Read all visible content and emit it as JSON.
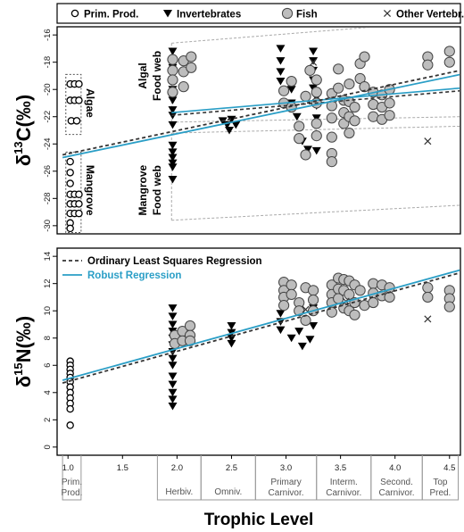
{
  "legend": [
    {
      "label": "Prim. Prod.",
      "marker": "circle-open"
    },
    {
      "label": "Invertebrates",
      "marker": "triangle-down"
    },
    {
      "label": "Fish",
      "marker": "circle-gray"
    },
    {
      "label": "Other Vertebr.",
      "marker": "cross"
    }
  ],
  "colors": {
    "ols": "#333333",
    "robust": "#2a9ec6",
    "fish": "#bdbdbd",
    "box": "#aaaaaa"
  },
  "chart_data": [
    {
      "type": "scatter",
      "ylabel_base": "δ",
      "ylabel_sup": "13",
      "ylabel_rest": "C(‰)",
      "xlim": [
        0.9,
        4.6
      ],
      "ylim": [
        -30.6,
        -15.4
      ],
      "yticks": [
        -16,
        -18,
        -20,
        -22,
        -24,
        -26,
        -28,
        -30
      ],
      "annotations": {
        "algae": "Algae",
        "mangrove": "Mangrove",
        "algal_web": [
          "Algal",
          "Food web"
        ],
        "mangrove_web": [
          "Mangrove",
          "Food web"
        ]
      },
      "fit_ols": [
        [
          0.95,
          -24.8
        ],
        [
          4.6,
          -18.6
        ]
      ],
      "fit_robust": [
        [
          0.95,
          -25.0
        ],
        [
          4.6,
          -18.9
        ]
      ],
      "fit_algal": [
        [
          1.95,
          -21.7
        ],
        [
          4.6,
          -19.9
        ]
      ],
      "fit_algal_ols": [
        [
          1.95,
          -21.9
        ],
        [
          4.6,
          -20.1
        ]
      ],
      "web_algal": {
        "x": [
          1.95,
          4.6
        ],
        "top": [
          -16.6,
          -14.9
        ],
        "bottom": [
          -22.4,
          -22.0
        ]
      },
      "web_mangrove": {
        "x": [
          1.95,
          4.6
        ],
        "top": [
          -23.2,
          -22.7
        ],
        "bottom": [
          -29.6,
          -28.5
        ]
      },
      "box_algae": {
        "x": [
          0.98,
          1.12
        ],
        "y": [
          -18.9,
          -23.3
        ]
      },
      "box_mangrove": {
        "x": [
          0.98,
          1.12
        ],
        "y": [
          -24.6,
          -30.5
        ]
      },
      "prim_prod": [
        [
          1.02,
          -19.6
        ],
        [
          1.06,
          -19.6
        ],
        [
          1.1,
          -19.6
        ],
        [
          1.02,
          -20.8
        ],
        [
          1.06,
          -20.8
        ],
        [
          1.1,
          -20.8
        ],
        [
          1.03,
          -22.3
        ],
        [
          1.08,
          -22.3
        ],
        [
          1.02,
          -25.3
        ],
        [
          1.02,
          -26.1
        ],
        [
          1.02,
          -26.9
        ],
        [
          1.02,
          -27.7
        ],
        [
          1.02,
          -28.4
        ],
        [
          1.02,
          -29.1
        ],
        [
          1.02,
          -29.8
        ],
        [
          1.06,
          -27.7
        ],
        [
          1.1,
          -27.7
        ],
        [
          1.06,
          -28.4
        ],
        [
          1.1,
          -28.4
        ],
        [
          1.06,
          -29.1
        ],
        [
          1.1,
          -29.1
        ],
        [
          1.02,
          -30.2
        ]
      ],
      "invertebrates": [
        [
          1.96,
          -17.2
        ],
        [
          1.96,
          -18.4
        ],
        [
          1.96,
          -19.3
        ],
        [
          1.96,
          -20.0
        ],
        [
          1.96,
          -20.8
        ],
        [
          1.96,
          -21.5
        ],
        [
          1.96,
          -21.9
        ],
        [
          1.96,
          -22.6
        ],
        [
          1.96,
          -24.1
        ],
        [
          1.96,
          -24.6
        ],
        [
          1.96,
          -25.0
        ],
        [
          1.96,
          -25.4
        ],
        [
          1.96,
          -25.7
        ],
        [
          1.96,
          -26.6
        ],
        [
          2.42,
          -22.3
        ],
        [
          2.46,
          -22.6
        ],
        [
          2.5,
          -22.2
        ],
        [
          2.54,
          -22.6
        ],
        [
          2.48,
          -23.0
        ],
        [
          2.95,
          -17.0
        ],
        [
          2.95,
          -17.9
        ],
        [
          2.95,
          -18.7
        ],
        [
          2.95,
          -19.4
        ],
        [
          3.05,
          -20.0
        ],
        [
          3.05,
          -21.0
        ],
        [
          3.1,
          -22.0
        ],
        [
          3.15,
          -23.8
        ],
        [
          3.2,
          -24.4
        ],
        [
          3.25,
          -17.2
        ],
        [
          3.25,
          -17.9
        ],
        [
          3.25,
          -18.6
        ],
        [
          3.25,
          -19.3
        ],
        [
          3.25,
          -19.9
        ],
        [
          3.28,
          -20.6
        ],
        [
          3.28,
          -21.2
        ],
        [
          3.28,
          -22.1
        ],
        [
          3.28,
          -24.5
        ]
      ],
      "fish": [
        [
          1.96,
          -17.8
        ],
        [
          1.96,
          -18.6
        ],
        [
          1.96,
          -19.3
        ],
        [
          1.96,
          -20.2
        ],
        [
          2.06,
          -17.9
        ],
        [
          2.06,
          -18.7
        ],
        [
          2.06,
          -19.8
        ],
        [
          2.13,
          -17.6
        ],
        [
          2.13,
          -18.4
        ],
        [
          2.98,
          -20.1
        ],
        [
          2.98,
          -21.0
        ],
        [
          3.05,
          -19.4
        ],
        [
          3.05,
          -21.3
        ],
        [
          3.12,
          -22.7
        ],
        [
          3.12,
          -23.6
        ],
        [
          3.18,
          -20.5
        ],
        [
          3.18,
          -24.8
        ],
        [
          3.22,
          -18.6
        ],
        [
          3.28,
          -19.3
        ],
        [
          3.28,
          -20.2
        ],
        [
          3.28,
          -21.0
        ],
        [
          3.28,
          -22.5
        ],
        [
          3.28,
          -23.4
        ],
        [
          3.42,
          -20.3
        ],
        [
          3.42,
          -21.2
        ],
        [
          3.42,
          -22.1
        ],
        [
          3.42,
          -23.5
        ],
        [
          3.42,
          -24.7
        ],
        [
          3.42,
          -25.3
        ],
        [
          3.48,
          -18.5
        ],
        [
          3.48,
          -19.9
        ],
        [
          3.53,
          -20.8
        ],
        [
          3.53,
          -21.7
        ],
        [
          3.53,
          -22.5
        ],
        [
          3.58,
          -19.6
        ],
        [
          3.58,
          -20.9
        ],
        [
          3.58,
          -22.0
        ],
        [
          3.58,
          -23.2
        ],
        [
          3.63,
          -21.3
        ],
        [
          3.63,
          -22.3
        ],
        [
          3.68,
          -18.1
        ],
        [
          3.68,
          -19.2
        ],
        [
          3.72,
          -17.6
        ],
        [
          3.72,
          -19.8
        ],
        [
          3.8,
          -20.2
        ],
        [
          3.8,
          -21.1
        ],
        [
          3.8,
          -22.0
        ],
        [
          3.88,
          -20.4
        ],
        [
          3.88,
          -21.3
        ],
        [
          3.88,
          -22.2
        ],
        [
          3.95,
          -20.0
        ],
        [
          3.95,
          -21.0
        ],
        [
          3.95,
          -21.9
        ],
        [
          4.3,
          -17.6
        ],
        [
          4.3,
          -18.2
        ],
        [
          4.5,
          -17.2
        ],
        [
          4.5,
          -18.0
        ]
      ],
      "other_vertebrates": [
        [
          3.25,
          -18.0
        ],
        [
          4.3,
          -23.8
        ]
      ]
    },
    {
      "type": "scatter",
      "ylabel_base": "δ",
      "ylabel_sup": "15",
      "ylabel_rest": "N(‰)",
      "xlim": [
        0.9,
        4.6
      ],
      "ylim": [
        -0.6,
        14.6
      ],
      "yticks": [
        0,
        2,
        4,
        6,
        8,
        10,
        12,
        14
      ],
      "xticks": [
        "1.0",
        "1.5",
        "2.0",
        "2.5",
        "3.0",
        "3.5",
        "4.0",
        "4.5"
      ],
      "xtick_values": [
        1.0,
        1.5,
        2.0,
        2.5,
        3.0,
        3.5,
        4.0,
        4.5
      ],
      "xlabel": "Trophic Level",
      "legend": [
        {
          "label": "Ordinary Least Squares Regression",
          "style": "dashed"
        },
        {
          "label": "Robust Regression",
          "style": "solid"
        }
      ],
      "fit_ols": [
        [
          0.95,
          4.7
        ],
        [
          4.6,
          12.8
        ]
      ],
      "fit_robust": [
        [
          0.95,
          4.9
        ],
        [
          4.6,
          13.0
        ]
      ],
      "prim_prod": [
        [
          1.02,
          6.3
        ],
        [
          1.02,
          6.0
        ],
        [
          1.02,
          5.7
        ],
        [
          1.02,
          5.4
        ],
        [
          1.02,
          5.1
        ],
        [
          1.02,
          4.8
        ],
        [
          1.02,
          4.4
        ],
        [
          1.02,
          4.0
        ],
        [
          1.02,
          3.6
        ],
        [
          1.02,
          3.2
        ],
        [
          1.02,
          2.8
        ],
        [
          1.02,
          1.6
        ]
      ],
      "invertebrates": [
        [
          1.96,
          10.2
        ],
        [
          1.96,
          9.6
        ],
        [
          1.96,
          9.0
        ],
        [
          1.96,
          8.5
        ],
        [
          1.96,
          8.0
        ],
        [
          1.96,
          7.5
        ],
        [
          1.96,
          7.0
        ],
        [
          1.96,
          6.5
        ],
        [
          1.96,
          6.0
        ],
        [
          1.96,
          5.2
        ],
        [
          1.96,
          4.6
        ],
        [
          1.96,
          4.0
        ],
        [
          1.96,
          3.5
        ],
        [
          1.96,
          3.0
        ],
        [
          2.5,
          8.9
        ],
        [
          2.5,
          8.4
        ],
        [
          2.5,
          8.0
        ],
        [
          2.5,
          7.6
        ],
        [
          2.95,
          9.8
        ],
        [
          2.95,
          9.2
        ],
        [
          2.95,
          8.6
        ],
        [
          3.05,
          8.0
        ],
        [
          3.12,
          8.5
        ],
        [
          3.15,
          7.4
        ],
        [
          3.22,
          7.9
        ],
        [
          3.25,
          8.9
        ],
        [
          3.25,
          10.2
        ]
      ],
      "fish": [
        [
          1.98,
          8.2
        ],
        [
          1.98,
          7.6
        ],
        [
          2.05,
          8.5
        ],
        [
          2.05,
          7.8
        ],
        [
          2.12,
          8.9
        ],
        [
          2.12,
          8.2
        ],
        [
          2.12,
          7.8
        ],
        [
          2.98,
          12.1
        ],
        [
          2.98,
          11.5
        ],
        [
          2.98,
          11.0
        ],
        [
          2.98,
          10.4
        ],
        [
          3.05,
          11.9
        ],
        [
          3.05,
          11.2
        ],
        [
          3.12,
          10.6
        ],
        [
          3.12,
          10.0
        ],
        [
          3.18,
          9.3
        ],
        [
          3.18,
          11.7
        ],
        [
          3.25,
          11.5
        ],
        [
          3.25,
          10.8
        ],
        [
          3.25,
          10.0
        ],
        [
          3.42,
          11.9
        ],
        [
          3.42,
          11.2
        ],
        [
          3.42,
          10.6
        ],
        [
          3.42,
          9.9
        ],
        [
          3.48,
          12.4
        ],
        [
          3.48,
          11.6
        ],
        [
          3.48,
          10.9
        ],
        [
          3.53,
          12.3
        ],
        [
          3.53,
          11.5
        ],
        [
          3.53,
          10.2
        ],
        [
          3.58,
          12.2
        ],
        [
          3.58,
          11.2
        ],
        [
          3.58,
          10.0
        ],
        [
          3.63,
          11.9
        ],
        [
          3.63,
          10.6
        ],
        [
          3.63,
          9.7
        ],
        [
          3.68,
          11.5
        ],
        [
          3.72,
          10.4
        ],
        [
          3.8,
          12.0
        ],
        [
          3.8,
          11.3
        ],
        [
          3.8,
          10.6
        ],
        [
          3.88,
          11.9
        ],
        [
          3.88,
          11.1
        ],
        [
          3.95,
          11.7
        ],
        [
          3.95,
          11.0
        ],
        [
          4.3,
          11.7
        ],
        [
          4.3,
          11.0
        ],
        [
          4.5,
          11.5
        ],
        [
          4.5,
          10.9
        ],
        [
          4.5,
          10.3
        ]
      ],
      "other_vertebrates": [
        [
          3.18,
          10.1
        ],
        [
          3.55,
          10.7
        ],
        [
          4.3,
          9.4
        ]
      ]
    }
  ],
  "trophic_groups": [
    {
      "from": 0.95,
      "to": 1.12,
      "label": [
        "Prim.",
        "Prod."
      ]
    },
    {
      "from": 1.82,
      "to": 2.22,
      "label": [
        "Herbiv."
      ]
    },
    {
      "from": 2.22,
      "to": 2.72,
      "label": [
        "Omniv."
      ]
    },
    {
      "from": 2.72,
      "to": 3.28,
      "label": [
        "Primary",
        "Carnivor."
      ]
    },
    {
      "from": 3.28,
      "to": 3.78,
      "label": [
        "Interm.",
        "Carnivor."
      ]
    },
    {
      "from": 3.78,
      "to": 4.25,
      "label": [
        "Second.",
        "Carnivor."
      ]
    },
    {
      "from": 4.25,
      "to": 4.58,
      "label": [
        "Top",
        "Pred."
      ]
    }
  ]
}
